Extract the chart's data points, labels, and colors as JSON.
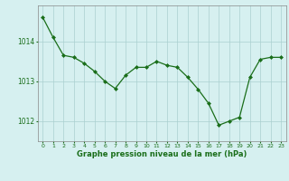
{
  "x": [
    0,
    1,
    2,
    3,
    4,
    5,
    6,
    7,
    8,
    9,
    10,
    11,
    12,
    13,
    14,
    15,
    16,
    17,
    18,
    19,
    20,
    21,
    22,
    23
  ],
  "y": [
    1014.6,
    1014.1,
    1013.65,
    1013.6,
    1013.45,
    1013.25,
    1013.0,
    1012.82,
    1013.15,
    1013.35,
    1013.35,
    1013.5,
    1013.4,
    1013.35,
    1013.1,
    1012.8,
    1012.45,
    1011.9,
    1012.0,
    1012.1,
    1013.1,
    1013.55,
    1013.6,
    1013.6
  ],
  "line_color": "#1a6e1a",
  "marker_color": "#1a6e1a",
  "bg_color": "#d6f0f0",
  "grid_color": "#aad0d0",
  "xlabel": "Graphe pression niveau de la mer (hPa)",
  "xlabel_color": "#1a6e1a",
  "tick_color": "#1a6e1a",
  "ylim": [
    1011.5,
    1014.9
  ],
  "yticks": [
    1012,
    1013,
    1014
  ],
  "xticks": [
    0,
    1,
    2,
    3,
    4,
    5,
    6,
    7,
    8,
    9,
    10,
    11,
    12,
    13,
    14,
    15,
    16,
    17,
    18,
    19,
    20,
    21,
    22,
    23
  ],
  "figsize": [
    3.2,
    2.0
  ],
  "dpi": 100
}
